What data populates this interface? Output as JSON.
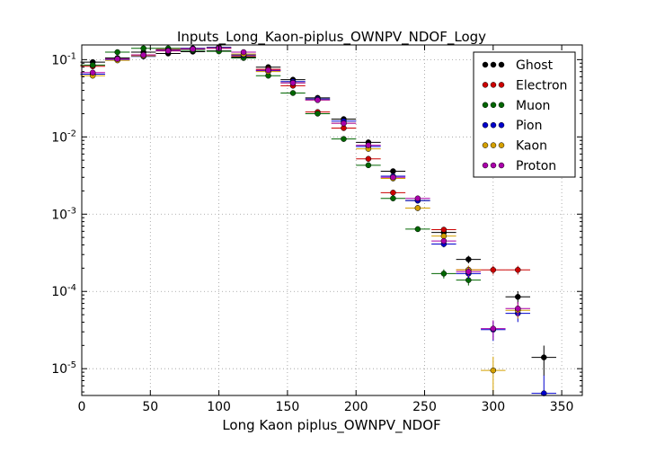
{
  "chart_data": {
    "type": "scatter",
    "title": "Inputs_Long_Kaon-piplus_OWNPV_NDOF_Logy",
    "xlabel": "Long Kaon piplus_OWNPV_NDOF",
    "ylabel": "",
    "xlim": [
      0,
      365
    ],
    "ylim": [
      4.5e-06,
      0.155
    ],
    "yscale": "log",
    "grid": true,
    "legend_position": "top-right",
    "x_ticks": [
      0,
      50,
      100,
      150,
      200,
      250,
      300,
      350
    ],
    "x_tick_labels": [
      "0",
      "50",
      "100",
      "150",
      "200",
      "250",
      "300",
      "350"
    ],
    "y_ticks": [
      1e-05,
      0.0001,
      0.001,
      0.01,
      0.1
    ],
    "y_tick_labels": [
      {
        "base": "10",
        "exp": "-5"
      },
      {
        "base": "10",
        "exp": "-4"
      },
      {
        "base": "10",
        "exp": "-3"
      },
      {
        "base": "10",
        "exp": "-2"
      },
      {
        "base": "10",
        "exp": "-1"
      }
    ],
    "bin_half_width": 9,
    "x": [
      8,
      26,
      45,
      63,
      81,
      100,
      118,
      136,
      154,
      172,
      191,
      209,
      227,
      245,
      264,
      282,
      300,
      318,
      337
    ],
    "series": [
      {
        "name": "Ghost",
        "color": "#000000",
        "values": [
          0.093,
          0.105,
          0.125,
          0.12,
          0.127,
          0.13,
          0.108,
          0.08,
          0.055,
          0.032,
          0.017,
          0.0085,
          0.0036,
          0.0015,
          0.00058,
          0.00026,
          null,
          8.5e-05,
          1.4e-05
        ]
      },
      {
        "name": "Electron",
        "color": "#cc0000",
        "values": [
          0.082,
          0.1,
          0.115,
          0.135,
          0.14,
          0.14,
          0.112,
          0.075,
          0.046,
          0.021,
          0.013,
          0.0052,
          0.0019,
          0.0012,
          0.00063,
          0.00019,
          0.00019,
          0.00019,
          null
        ]
      },
      {
        "name": "Muon",
        "color": "#006600",
        "values": [
          0.085,
          0.125,
          0.14,
          0.14,
          0.132,
          0.128,
          0.105,
          0.062,
          0.037,
          0.02,
          0.0094,
          0.0043,
          0.0016,
          0.00064,
          0.00017,
          0.00014,
          null,
          null,
          null
        ]
      },
      {
        "name": "Pion",
        "color": "#0000cc",
        "values": [
          0.065,
          0.1,
          0.11,
          0.132,
          0.14,
          0.145,
          0.115,
          0.072,
          0.052,
          0.031,
          0.016,
          0.0075,
          0.0031,
          0.0015,
          0.00041,
          0.00017,
          3.2e-05,
          5.2e-05,
          4.8e-06
        ]
      },
      {
        "name": "Kaon",
        "color": "#d4a000",
        "values": [
          0.062,
          0.098,
          0.112,
          0.13,
          0.138,
          0.142,
          0.118,
          0.07,
          0.05,
          0.03,
          0.015,
          0.007,
          0.0029,
          0.0012,
          0.00052,
          0.00019,
          9.5e-06,
          5.7e-05,
          null
        ]
      },
      {
        "name": "Proton",
        "color": "#aa00aa",
        "values": [
          0.068,
          0.102,
          0.115,
          0.13,
          0.137,
          0.14,
          0.125,
          0.073,
          0.05,
          0.03,
          0.015,
          0.0078,
          0.003,
          0.0016,
          0.00045,
          0.00018,
          3.3e-05,
          6e-05,
          null
        ]
      }
    ]
  }
}
